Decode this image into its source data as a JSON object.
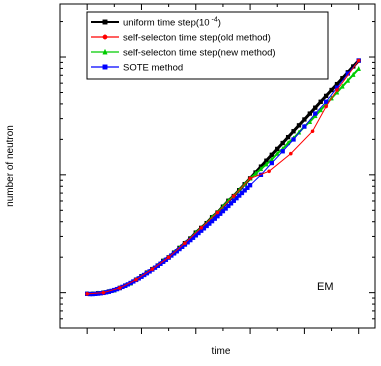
{
  "chart_data": {
    "type": "line",
    "title": "",
    "xlabel": "time",
    "ylabel": "number of neutron",
    "yscale": "log",
    "grid": false,
    "legend_position": "top-left",
    "annotation": "EM",
    "series": [
      {
        "name": "uniform time step(10 -4)",
        "color": "#000000",
        "marker": "square",
        "x": [
          0.0,
          0.1,
          0.2,
          0.3,
          0.4,
          0.5,
          0.6,
          0.7,
          0.8,
          0.9,
          1.0,
          1.1,
          1.2,
          1.3,
          1.4,
          1.5,
          1.6,
          1.7,
          1.8,
          1.9,
          2.0,
          2.1,
          2.2,
          2.3,
          2.4,
          2.5,
          2.6,
          2.7,
          2.8,
          2.9,
          3.0,
          3.1,
          3.2,
          3.3,
          3.4,
          3.5,
          3.6,
          3.7,
          3.8,
          3.9,
          4.0,
          4.1,
          4.2,
          4.3,
          4.4,
          4.5,
          4.6,
          4.7,
          4.8,
          4.9,
          5.0
        ],
        "y": [
          -0.01,
          -0.01,
          -0.005,
          0.0,
          0.01,
          0.02,
          0.04,
          0.06,
          0.08,
          0.11,
          0.14,
          0.17,
          0.2,
          0.23,
          0.27,
          0.3,
          0.34,
          0.38,
          0.42,
          0.46,
          0.51,
          0.55,
          0.59,
          0.64,
          0.68,
          0.73,
          0.78,
          0.82,
          0.87,
          0.92,
          0.97,
          1.02,
          1.07,
          1.12,
          1.17,
          1.22,
          1.27,
          1.32,
          1.37,
          1.42,
          1.47,
          1.52,
          1.57,
          1.62,
          1.67,
          1.72,
          1.77,
          1.82,
          1.87,
          1.92,
          1.97
        ]
      },
      {
        "name": "self-selecton time step(old method)",
        "color": "#ff0000",
        "marker": "circle",
        "x": [
          0.0,
          0.3,
          0.6,
          0.9,
          1.2,
          1.5,
          1.8,
          2.1,
          2.4,
          2.7,
          3.0,
          3.35,
          3.75,
          4.15,
          4.4,
          4.6,
          5.0
        ],
        "y": [
          -0.01,
          0.0,
          0.04,
          0.11,
          0.2,
          0.3,
          0.42,
          0.55,
          0.68,
          0.82,
          0.97,
          1.03,
          1.18,
          1.37,
          1.58,
          1.72,
          1.97
        ]
      },
      {
        "name": "self-selecton time step(new method)",
        "color": "#00cc00",
        "marker": "triangle",
        "x": [
          0.0,
          0.1,
          0.2,
          0.3,
          0.4,
          0.5,
          0.6,
          0.7,
          0.8,
          0.9,
          1.0,
          1.1,
          1.2,
          1.3,
          1.4,
          1.5,
          1.6,
          1.7,
          1.8,
          1.9,
          2.0,
          2.1,
          2.2,
          2.3,
          2.4,
          2.5,
          2.6,
          2.7,
          2.8,
          2.9,
          3.0,
          3.1,
          3.2,
          3.3,
          3.4,
          3.5,
          3.6,
          3.7,
          3.8,
          3.9,
          4.0,
          4.1,
          4.2,
          4.3,
          4.4,
          4.5,
          4.6,
          4.7,
          4.8,
          4.9,
          5.0
        ],
        "y": [
          -0.01,
          -0.01,
          -0.005,
          0.0,
          0.01,
          0.02,
          0.04,
          0.06,
          0.08,
          0.11,
          0.14,
          0.17,
          0.2,
          0.23,
          0.27,
          0.3,
          0.34,
          0.38,
          0.42,
          0.46,
          0.51,
          0.55,
          0.59,
          0.64,
          0.68,
          0.73,
          0.78,
          0.82,
          0.87,
          0.92,
          0.97,
          1.01,
          1.05,
          1.09,
          1.13,
          1.18,
          1.22,
          1.27,
          1.31,
          1.36,
          1.41,
          1.45,
          1.5,
          1.55,
          1.6,
          1.65,
          1.7,
          1.75,
          1.8,
          1.85,
          1.9
        ]
      },
      {
        "name": "SOTE method",
        "color": "#0000ff",
        "marker": "square",
        "x": [
          0.0,
          0.05,
          0.1,
          0.15,
          0.2,
          0.25,
          0.3,
          0.35,
          0.4,
          0.45,
          0.5,
          0.55,
          0.6,
          0.65,
          0.7,
          0.75,
          0.8,
          0.85,
          0.9,
          0.95,
          1.0,
          1.05,
          1.1,
          1.15,
          1.2,
          1.25,
          1.3,
          1.35,
          1.4,
          1.45,
          1.5,
          1.55,
          1.6,
          1.65,
          1.7,
          1.75,
          1.8,
          1.85,
          1.9,
          1.95,
          2.0,
          2.05,
          2.1,
          2.15,
          2.2,
          2.25,
          2.3,
          2.35,
          2.4,
          2.45,
          2.5,
          2.55,
          2.6,
          2.65,
          2.7,
          2.75,
          2.8,
          2.85,
          2.9,
          2.95,
          3.0,
          3.2,
          3.4,
          3.6,
          3.8,
          4.0,
          4.2,
          4.4,
          4.6,
          4.8,
          5.0
        ],
        "y": [
          -0.01,
          -0.012,
          -0.012,
          -0.01,
          -0.008,
          -0.005,
          -0.002,
          0.003,
          0.008,
          0.015,
          0.022,
          0.03,
          0.039,
          0.049,
          0.059,
          0.07,
          0.082,
          0.095,
          0.108,
          0.121,
          0.135,
          0.15,
          0.165,
          0.18,
          0.196,
          0.212,
          0.228,
          0.245,
          0.262,
          0.279,
          0.297,
          0.315,
          0.333,
          0.351,
          0.37,
          0.389,
          0.408,
          0.427,
          0.446,
          0.466,
          0.486,
          0.506,
          0.526,
          0.546,
          0.566,
          0.586,
          0.607,
          0.628,
          0.649,
          0.67,
          0.692,
          0.714,
          0.736,
          0.758,
          0.78,
          0.802,
          0.824,
          0.846,
          0.868,
          0.89,
          0.912,
          1.0,
          1.1,
          1.2,
          1.3,
          1.41,
          1.52,
          1.62,
          1.74,
          1.86,
          1.97
        ]
      }
    ]
  },
  "legend": {
    "items": [
      {
        "label": "uniform time step(10",
        "superscript": "-4",
        "suffix": ")"
      },
      {
        "label": "self-selecton time step(old method)"
      },
      {
        "label": "self-selecton time step(new method)"
      },
      {
        "label": "SOTE method"
      }
    ]
  }
}
